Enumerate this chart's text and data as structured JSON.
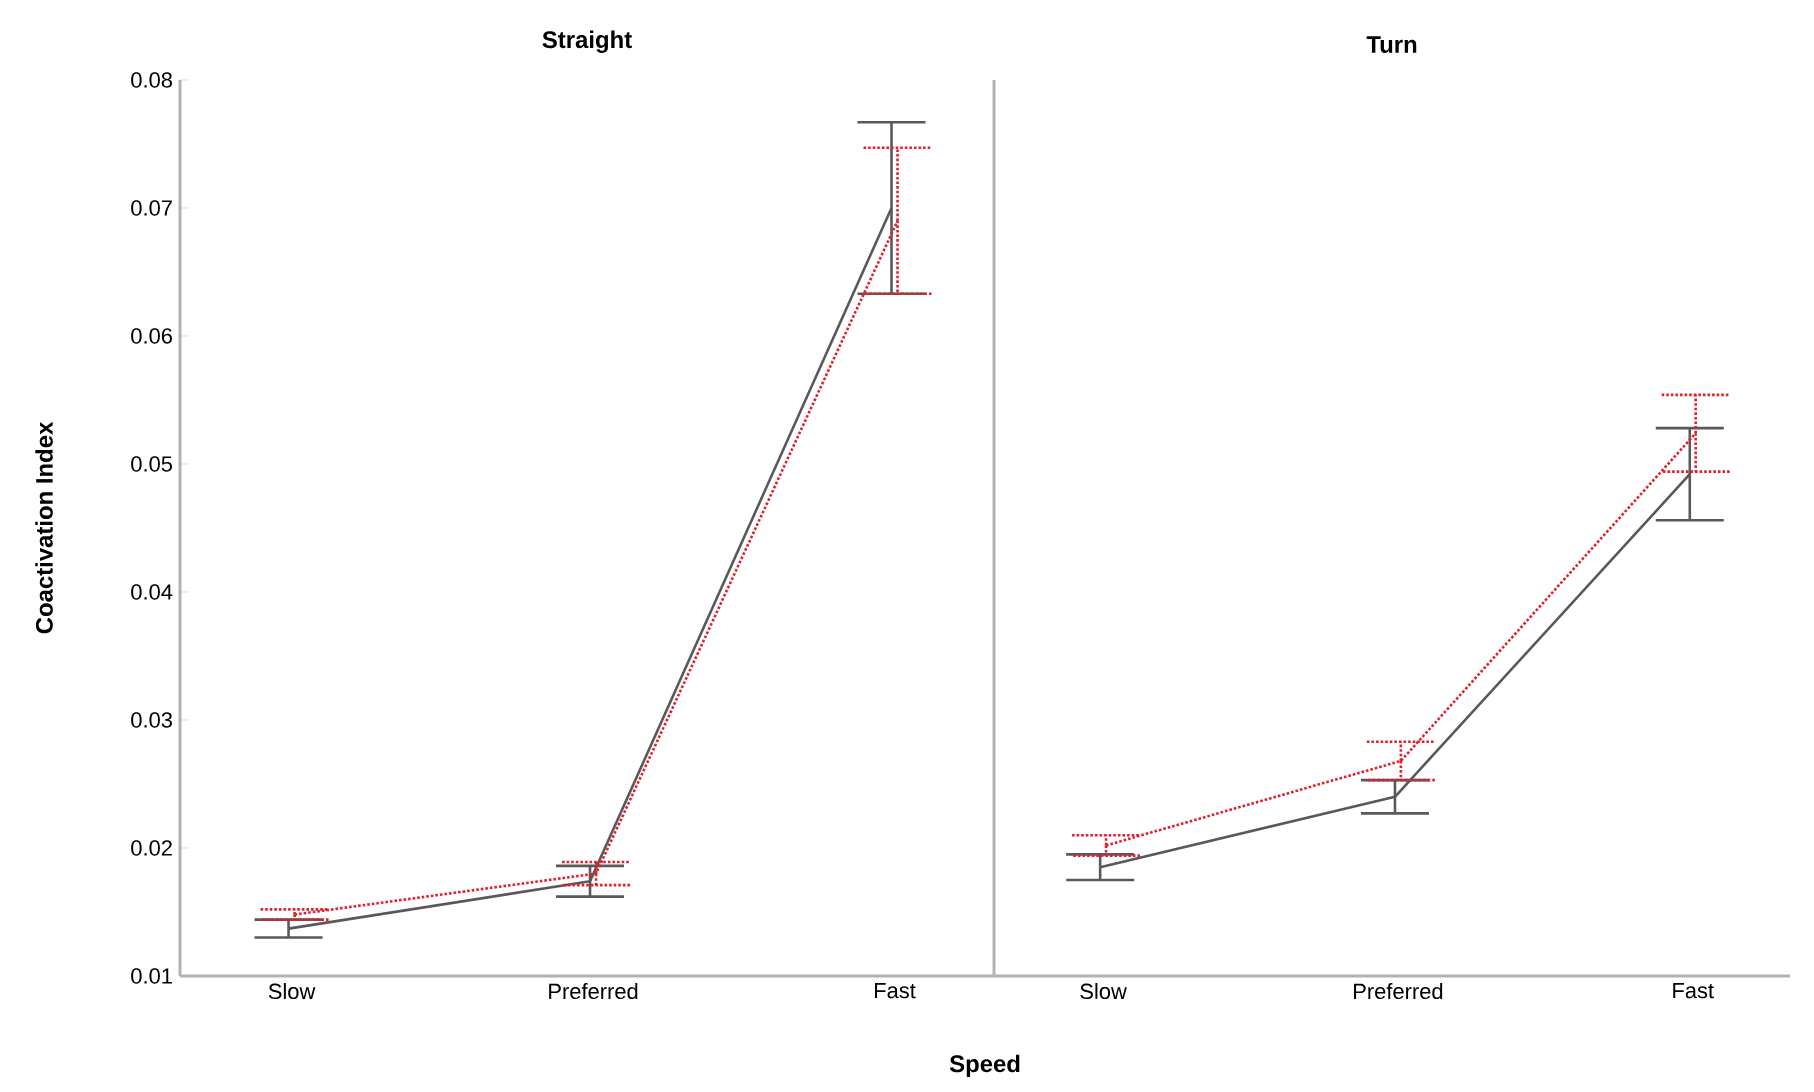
{
  "chart_data": [
    {
      "type": "line",
      "title": "Straight",
      "xlabel": "Speed",
      "ylabel": "Coactivation Index",
      "categories": [
        "Slow",
        "Preferred",
        "Fast"
      ],
      "ylim": [
        0.01,
        0.08
      ],
      "yticks": [
        0.01,
        0.02,
        0.03,
        0.04,
        0.05,
        0.06,
        0.07,
        0.08
      ],
      "series": [
        {
          "color": "#595959",
          "line_style": "solid",
          "values": [
            0.0137,
            0.0174,
            0.07
          ],
          "errors": [
            0.0007,
            0.0012,
            0.0067
          ]
        },
        {
          "color": "#e0202b",
          "line_style": "dotted",
          "values": [
            0.0148,
            0.018,
            0.069
          ],
          "errors": [
            0.0004,
            0.0009,
            0.0057
          ]
        }
      ]
    },
    {
      "type": "line",
      "title": "Turn",
      "categories": [
        "Slow",
        "Preferred",
        "Fast"
      ],
      "ylim": [
        0.01,
        0.08
      ],
      "yticks": [
        0.01,
        0.02,
        0.03,
        0.04,
        0.05,
        0.06,
        0.07,
        0.08
      ],
      "tick_labels": "x",
      "series": [
        {
          "color": "#595959",
          "line_style": "solid",
          "values": [
            0.0185,
            0.024,
            0.0492
          ],
          "errors": [
            0.001,
            0.0013,
            0.0036
          ]
        },
        {
          "color": "#e0202b",
          "line_style": "dotted",
          "values": [
            0.0202,
            0.0268,
            0.0524
          ],
          "errors": [
            0.0008,
            0.0015,
            0.003
          ]
        }
      ]
    }
  ]
}
